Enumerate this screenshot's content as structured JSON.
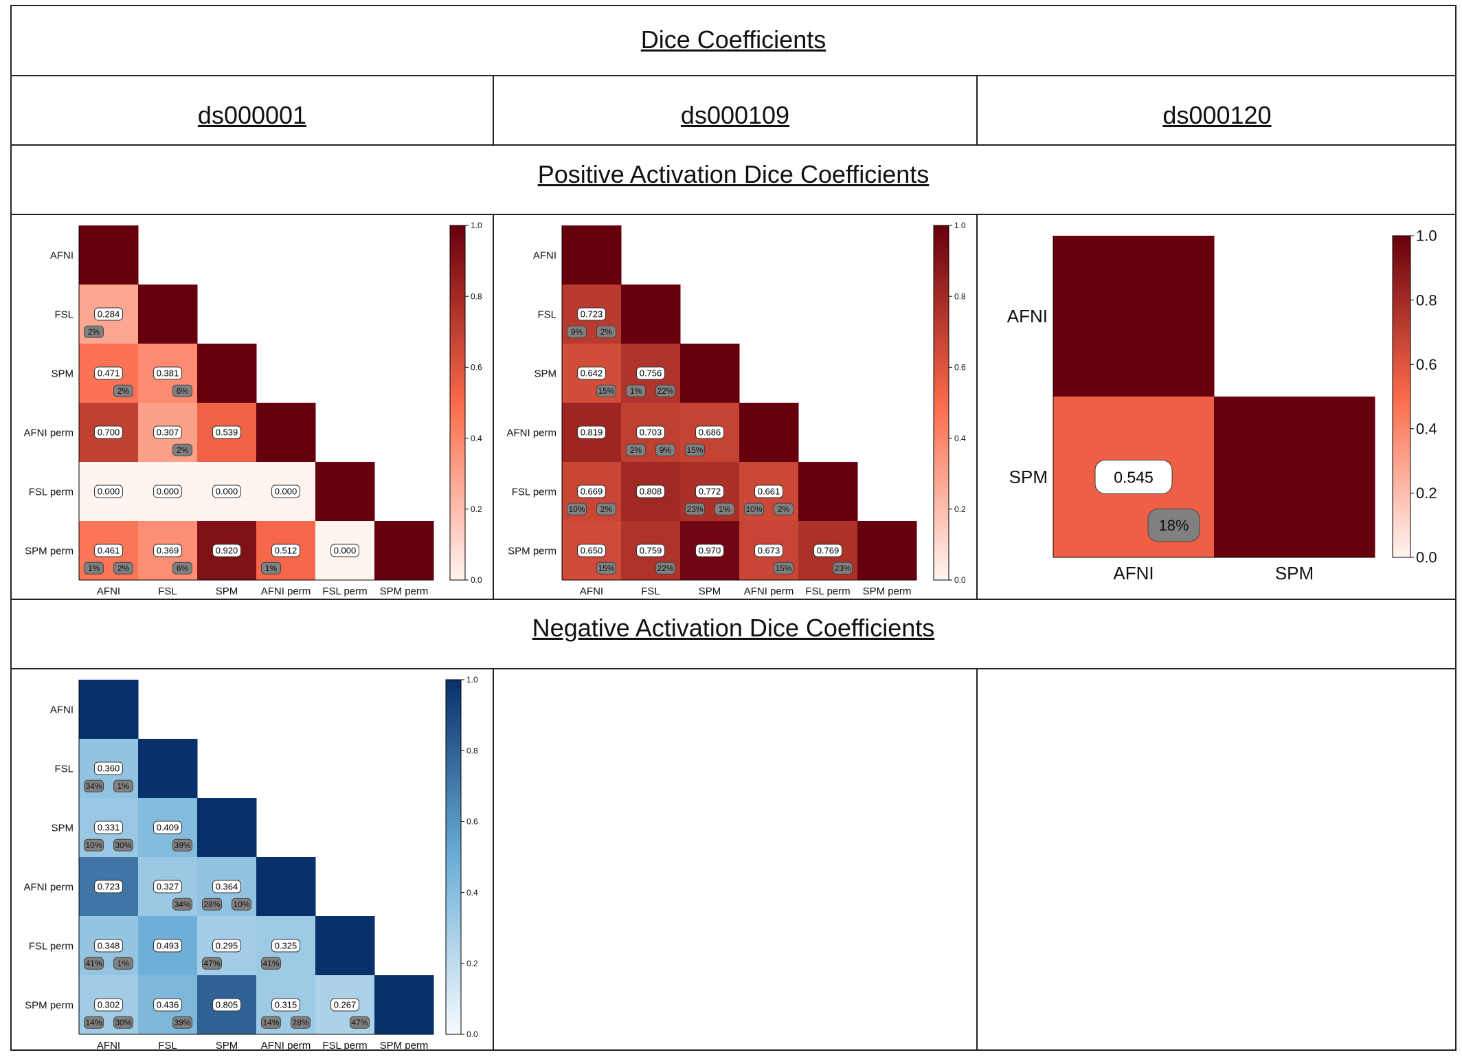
{
  "title": "Dice Coefficients",
  "datasets": [
    "ds000001",
    "ds000109",
    "ds000120"
  ],
  "sections": {
    "positive": "Positive Activation Dice Coefficients",
    "negative": "Negative Activation Dice Coefficients"
  },
  "colors": {
    "reds_low": "#fff5f0",
    "reds_mid": "#fb6a4a",
    "reds_high": "#67000d",
    "blues_low": "#f7fbff",
    "blues_mid": "#6baed6",
    "blues_high": "#08306b",
    "badge": "#808080"
  },
  "chart_data": [
    {
      "type": "heatmap",
      "panel": "ds000001 positive",
      "colormap": "Reds",
      "vlim": [
        0,
        1
      ],
      "colorbar_ticks": [
        "0.0",
        "0.2",
        "0.4",
        "0.6",
        "0.8",
        "1.0"
      ],
      "labels": [
        "AFNI",
        "FSL",
        "SPM",
        "AFNI perm",
        "FSL perm",
        "SPM perm"
      ],
      "values": [
        [
          1
        ],
        [
          0.284,
          1
        ],
        [
          0.471,
          0.381,
          1
        ],
        [
          0.7,
          0.307,
          0.539,
          1
        ],
        [
          0.0,
          0.0,
          0.0,
          0.0,
          1
        ],
        [
          0.461,
          0.369,
          0.92,
          0.512,
          0.0,
          1
        ]
      ],
      "value_labels": [
        [
          null
        ],
        [
          "0.284",
          null
        ],
        [
          "0.471",
          "0.381",
          null
        ],
        [
          "0.700",
          "0.307",
          "0.539",
          null
        ],
        [
          "0.000",
          "0.000",
          "0.000",
          "0.000",
          null
        ],
        [
          "0.461",
          "0.369",
          "0.920",
          "0.512",
          "0.000",
          null
        ]
      ],
      "badges": [
        [
          null
        ],
        [
          [
            "2%",
            ""
          ],
          null
        ],
        [
          [
            "",
            "2%"
          ],
          [
            "",
            "6%"
          ],
          null
        ],
        [
          null,
          [
            "",
            "2%"
          ],
          null,
          null
        ],
        [
          null,
          null,
          null,
          null,
          null
        ],
        [
          [
            "1%",
            "2%"
          ],
          [
            "",
            "6%"
          ],
          null,
          [
            "1%",
            ""
          ],
          null,
          null
        ]
      ]
    },
    {
      "type": "heatmap",
      "panel": "ds000109 positive",
      "colormap": "Reds",
      "vlim": [
        0,
        1
      ],
      "colorbar_ticks": [
        "0.0",
        "0.2",
        "0.4",
        "0.6",
        "0.8",
        "1.0"
      ],
      "labels": [
        "AFNI",
        "FSL",
        "SPM",
        "AFNI perm",
        "FSL perm",
        "SPM perm"
      ],
      "values": [
        [
          1
        ],
        [
          0.723,
          1
        ],
        [
          0.642,
          0.756,
          1
        ],
        [
          0.819,
          0.703,
          0.686,
          1
        ],
        [
          0.669,
          0.808,
          0.772,
          0.661,
          1
        ],
        [
          0.65,
          0.759,
          0.97,
          0.673,
          0.769,
          1
        ]
      ],
      "value_labels": [
        [
          null
        ],
        [
          "0.723",
          null
        ],
        [
          "0.642",
          "0.756",
          null
        ],
        [
          "0.819",
          "0.703",
          "0.686",
          null
        ],
        [
          "0.669",
          "0.808",
          "0.772",
          "0.661",
          null
        ],
        [
          "0.650",
          "0.759",
          "0.970",
          "0.673",
          "0.769",
          null
        ]
      ],
      "badges": [
        [
          null
        ],
        [
          [
            "9%",
            "2%"
          ],
          null
        ],
        [
          [
            "",
            "15%"
          ],
          [
            "1%",
            "22%"
          ],
          null
        ],
        [
          null,
          [
            "2%",
            "9%"
          ],
          [
            "15%",
            ""
          ],
          null
        ],
        [
          [
            "10%",
            "2%"
          ],
          null,
          [
            "23%",
            "1%"
          ],
          [
            "10%",
            "2%"
          ],
          null
        ],
        [
          [
            "",
            "15%"
          ],
          [
            "",
            "22%"
          ],
          null,
          [
            "",
            "15%"
          ],
          [
            "",
            "23%"
          ],
          null
        ]
      ]
    },
    {
      "type": "heatmap",
      "panel": "ds000120 positive",
      "colormap": "Reds",
      "vlim": [
        0,
        1
      ],
      "colorbar_ticks": [
        "0.0",
        "0.2",
        "0.4",
        "0.6",
        "0.8",
        "1.0"
      ],
      "labels": [
        "AFNI",
        "SPM"
      ],
      "values": [
        [
          1
        ],
        [
          0.545,
          1
        ]
      ],
      "value_labels": [
        [
          null
        ],
        [
          "0.545",
          null
        ]
      ],
      "badges": [
        [
          null
        ],
        [
          [
            "",
            "18%"
          ],
          null
        ]
      ]
    },
    {
      "type": "heatmap",
      "panel": "ds000001 negative",
      "colormap": "Blues",
      "vlim": [
        0,
        1
      ],
      "colorbar_ticks": [
        "0.0",
        "0.2",
        "0.4",
        "0.6",
        "0.8",
        "1.0"
      ],
      "labels": [
        "AFNI",
        "FSL",
        "SPM",
        "AFNI perm",
        "FSL perm",
        "SPM perm"
      ],
      "values": [
        [
          1
        ],
        [
          0.36,
          1
        ],
        [
          0.331,
          0.409,
          1
        ],
        [
          0.723,
          0.327,
          0.364,
          1
        ],
        [
          0.348,
          0.493,
          0.295,
          0.325,
          1
        ],
        [
          0.302,
          0.436,
          0.805,
          0.315,
          0.267,
          1
        ]
      ],
      "value_labels": [
        [
          null
        ],
        [
          "0.360",
          null
        ],
        [
          "0.331",
          "0.409",
          null
        ],
        [
          "0.723",
          "0.327",
          "0.364",
          null
        ],
        [
          "0.348",
          "0.493",
          "0.295",
          "0.325",
          null
        ],
        [
          "0.302",
          "0.436",
          "0.805",
          "0.315",
          "0.267",
          null
        ]
      ],
      "badges": [
        [
          null
        ],
        [
          [
            "34%",
            "1%"
          ],
          null
        ],
        [
          [
            "10%",
            "30%"
          ],
          [
            "",
            "39%"
          ],
          null
        ],
        [
          null,
          [
            "",
            "34%"
          ],
          [
            "28%",
            "10%"
          ],
          null
        ],
        [
          [
            "41%",
            "1%"
          ],
          null,
          [
            "47%",
            ""
          ],
          [
            "41%",
            ""
          ],
          null
        ],
        [
          [
            "14%",
            "30%"
          ],
          [
            "",
            "39%"
          ],
          null,
          [
            "14%",
            "28%"
          ],
          [
            "",
            "47%"
          ],
          null
        ]
      ]
    }
  ]
}
